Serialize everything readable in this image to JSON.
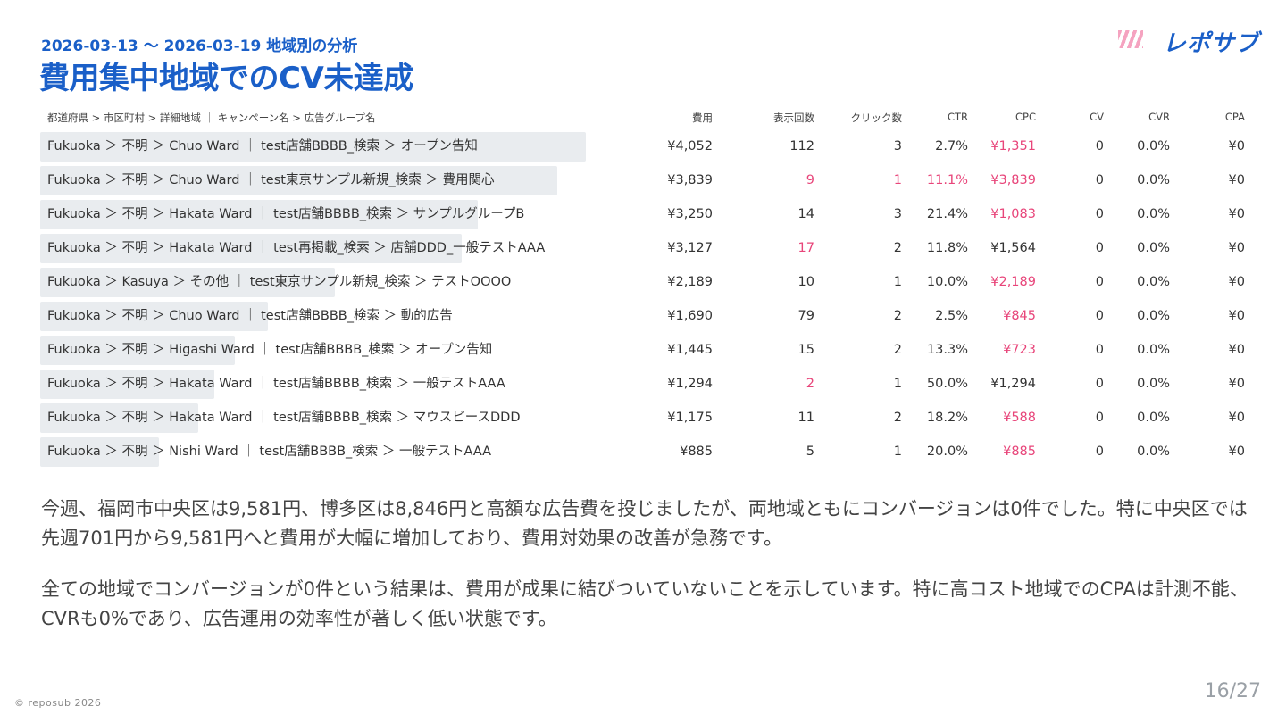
{
  "header": {
    "subtitle": "2026-03-13 ～ 2026-03-19 地域別の分析",
    "title": "費用集中地域でのCV未達成",
    "logo": "レポサブ"
  },
  "table": {
    "headers": [
      "都道府県 > 市区町村 > 詳細地域 ｜ キャンペーン名 > 広告グループ名",
      "費用",
      "表示回数",
      "クリック数",
      "CTR",
      "CPC",
      "CV",
      "CVR",
      "CPA"
    ],
    "bar_color": "#e9ecef",
    "highlight_color": "#e8457a",
    "rows": [
      {
        "label": "Fukuoka ＞ 不明 ＞ Chuo Ward ｜ test店舗BBBB_検索 ＞ オープン告知",
        "cost": {
          "value": 4052,
          "label": "¥4,052"
        },
        "cells": [
          "112",
          "3",
          "2.7%",
          "¥1,351",
          "0",
          "0.0%",
          "¥0"
        ],
        "highlight": [
          3
        ]
      },
      {
        "label": "Fukuoka ＞ 不明 ＞ Chuo Ward ｜ test東京サンプル新規_検索 ＞ 費用関心",
        "cost": {
          "value": 3839,
          "label": "¥3,839"
        },
        "cells": [
          "9",
          "1",
          "11.1%",
          "¥3,839",
          "0",
          "0.0%",
          "¥0"
        ],
        "highlight": [
          0,
          1,
          2,
          3
        ]
      },
      {
        "label": "Fukuoka ＞ 不明 ＞ Hakata Ward ｜ test店舗BBBB_検索 ＞ サンプルグループB",
        "cost": {
          "value": 3250,
          "label": "¥3,250"
        },
        "cells": [
          "14",
          "3",
          "21.4%",
          "¥1,083",
          "0",
          "0.0%",
          "¥0"
        ],
        "highlight": [
          3
        ]
      },
      {
        "label": "Fukuoka ＞ 不明 ＞ Hakata Ward ｜ test再掲載_検索 ＞ 店舗DDD_一般テストAAA",
        "cost": {
          "value": 3127,
          "label": "¥3,127"
        },
        "cells": [
          "17",
          "2",
          "11.8%",
          "¥1,564",
          "0",
          "0.0%",
          "¥0"
        ],
        "highlight": [
          0
        ]
      },
      {
        "label": "Fukuoka ＞ Kasuya ＞ その他 ｜ test東京サンプル新規_検索 ＞ テストOOOO",
        "cost": {
          "value": 2189,
          "label": "¥2,189"
        },
        "cells": [
          "10",
          "1",
          "10.0%",
          "¥2,189",
          "0",
          "0.0%",
          "¥0"
        ],
        "highlight": [
          3
        ]
      },
      {
        "label": "Fukuoka ＞ 不明 ＞ Chuo Ward ｜ test店舗BBBB_検索 ＞ 動的広告",
        "cost": {
          "value": 1690,
          "label": "¥1,690"
        },
        "cells": [
          "79",
          "2",
          "2.5%",
          "¥845",
          "0",
          "0.0%",
          "¥0"
        ],
        "highlight": [
          3
        ]
      },
      {
        "label": "Fukuoka ＞ 不明 ＞ Higashi Ward ｜ test店舗BBBB_検索 ＞ オープン告知",
        "cost": {
          "value": 1445,
          "label": "¥1,445"
        },
        "cells": [
          "15",
          "2",
          "13.3%",
          "¥723",
          "0",
          "0.0%",
          "¥0"
        ],
        "highlight": [
          3
        ]
      },
      {
        "label": "Fukuoka ＞ 不明 ＞ Hakata Ward ｜ test店舗BBBB_検索 ＞ 一般テストAAA",
        "cost": {
          "value": 1294,
          "label": "¥1,294"
        },
        "cells": [
          "2",
          "1",
          "50.0%",
          "¥1,294",
          "0",
          "0.0%",
          "¥0"
        ],
        "highlight": [
          0
        ]
      },
      {
        "label": "Fukuoka ＞ 不明 ＞ Hakata Ward ｜ test店舗BBBB_検索 ＞ マウスピースDDD",
        "cost": {
          "value": 1175,
          "label": "¥1,175"
        },
        "cells": [
          "11",
          "2",
          "18.2%",
          "¥588",
          "0",
          "0.0%",
          "¥0"
        ],
        "highlight": [
          3
        ]
      },
      {
        "label": "Fukuoka ＞ 不明 ＞ Nishi Ward ｜ test店舗BBBB_検索 ＞ 一般テストAAA",
        "cost": {
          "value": 885,
          "label": "¥885"
        },
        "cells": [
          "5",
          "1",
          "20.0%",
          "¥885",
          "0",
          "0.0%",
          "¥0"
        ],
        "highlight": [
          3
        ]
      }
    ]
  },
  "paragraphs": [
    "今週、福岡市中央区は9,581円、博多区は8,846円と高額な広告費を投じましたが、両地域ともにコンバージョンは0件でした。特に中央区では先週701円から9,581円へと費用が大幅に増加しており、費用対効果の改善が急務です。",
    "全ての地域でコンバージョンが0件という結果は、費用が成果に結びついていないことを示しています。特に高コスト地域でのCPAは計測不能、CVRも0%であり、広告運用の効率性が著しく低い状態です。"
  ],
  "footer": {
    "copyright": "© reposub 2026",
    "page": "16/27"
  }
}
